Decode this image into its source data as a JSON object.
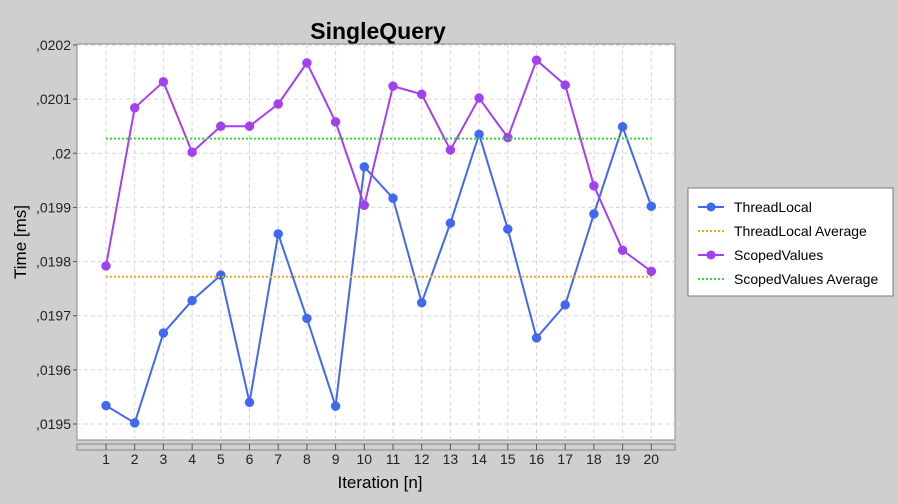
{
  "chart_data": {
    "type": "line",
    "title": "SingleQuery",
    "xlabel": "Iteration [n]",
    "ylabel": "Time [ms]",
    "x": [
      1,
      2,
      3,
      4,
      5,
      6,
      7,
      8,
      9,
      10,
      11,
      12,
      13,
      14,
      15,
      16,
      17,
      18,
      19,
      20
    ],
    "x_tick_labels": [
      "1",
      "2",
      "3",
      "4",
      "5",
      "6",
      "7",
      "8",
      "9",
      "10",
      "11",
      "12",
      "13",
      "14",
      "15",
      "16",
      "17",
      "18",
      "19",
      "20"
    ],
    "y_ticks": [
      0.0195,
      0.0196,
      0.0197,
      0.0198,
      0.0199,
      0.02,
      0.0201,
      0.0202
    ],
    "y_tick_labels": [
      ",0195",
      ",0196",
      ",0197",
      ",0198",
      ",0199",
      ",02",
      ",0201",
      ",0202"
    ],
    "ylim": [
      0.01948,
      0.02022
    ],
    "grid": true,
    "legend_position": "right",
    "series": [
      {
        "name": "ThreadLocal",
        "color": "#4169f0",
        "style": "solid",
        "markers": true,
        "values": [
          0.019534,
          0.019502,
          0.019668,
          0.019728,
          0.019775,
          0.01954,
          0.019851,
          0.019695,
          0.019533,
          0.019975,
          0.019917,
          0.019724,
          0.019871,
          0.020035,
          0.01986,
          0.019659,
          0.01972,
          0.019888,
          0.020049,
          0.019902
        ]
      },
      {
        "name": "ThreadLocal Average",
        "color": "#f5a623",
        "style": "dotted",
        "markers": false,
        "values": [
          0.019772,
          0.019772,
          0.019772,
          0.019772,
          0.019772,
          0.019772,
          0.019772,
          0.019772,
          0.019772,
          0.019772,
          0.019772,
          0.019772,
          0.019772,
          0.019772,
          0.019772,
          0.019772,
          0.019772,
          0.019772,
          0.019772,
          0.019772
        ]
      },
      {
        "name": "ScopedValues",
        "color": "#a340f0",
        "style": "solid",
        "markers": true,
        "values": [
          0.019792,
          0.020084,
          0.020132,
          0.020002,
          0.02005,
          0.02005,
          0.020091,
          0.020167,
          0.020058,
          0.019904,
          0.020124,
          0.020109,
          0.020006,
          0.020102,
          0.020029,
          0.020172,
          0.020126,
          0.01994,
          0.019821,
          0.019782
        ]
      },
      {
        "name": "ScopedValues Average",
        "color": "#33dd33",
        "style": "dotted",
        "markers": false,
        "values": [
          0.020027,
          0.020027,
          0.020027,
          0.020027,
          0.020027,
          0.020027,
          0.020027,
          0.020027,
          0.020027,
          0.020027,
          0.020027,
          0.020027,
          0.020027,
          0.020027,
          0.020027,
          0.020027,
          0.020027,
          0.020027,
          0.020027,
          0.020027
        ]
      }
    ]
  }
}
